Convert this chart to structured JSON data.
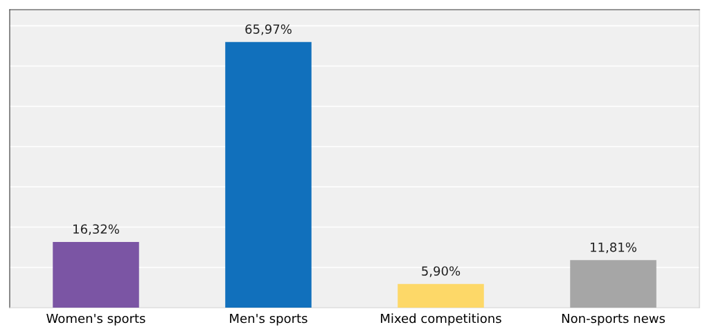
{
  "chart_data": {
    "type": "bar",
    "categories": [
      "Women's sports",
      "Men's sports",
      "Mixed competitions",
      "Non-sports news"
    ],
    "values": [
      16.32,
      65.97,
      5.9,
      11.81
    ],
    "colors": [
      "#7b55a4",
      "#1170bc",
      "#fdd868",
      "#a6a6a6"
    ],
    "value_labels": [
      "16,32%",
      "65,97%",
      "5,90%",
      "11,81%"
    ],
    "ylim": [
      0,
      74
    ],
    "yticks": [
      {
        "value": 0,
        "label": null
      },
      {
        "value": 10,
        "label": null
      },
      {
        "value": 20,
        "label": null
      },
      {
        "value": 30,
        "label": null
      },
      {
        "value": 40,
        "label": null
      },
      {
        "value": 50,
        "label": null
      },
      {
        "value": 60,
        "label": null
      },
      {
        "value": 70,
        "label": null
      }
    ],
    "grid": "y",
    "tick_labels": "x"
  }
}
